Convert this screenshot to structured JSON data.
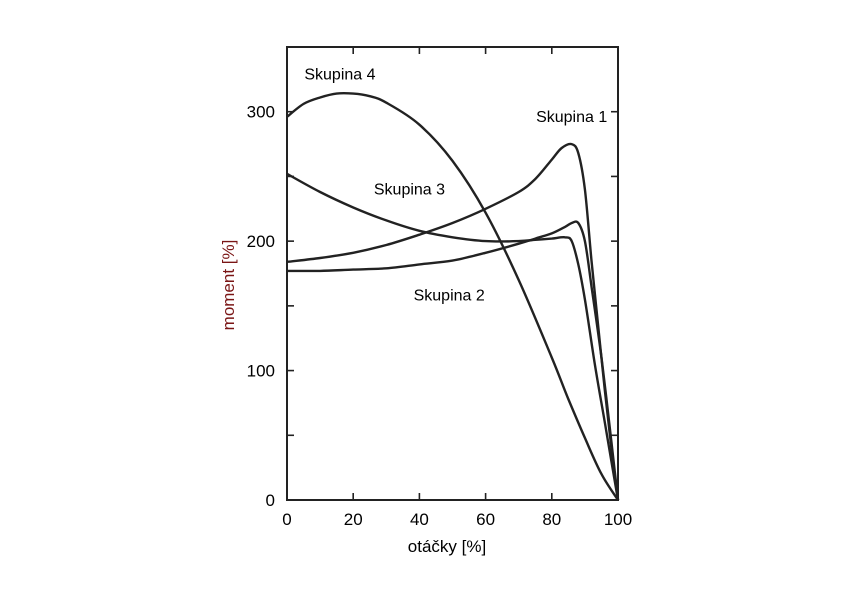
{
  "chart_data": {
    "type": "line",
    "xlabel": "otáčky  [%]",
    "ylabel": "moment [%]",
    "xlim": [
      0,
      100
    ],
    "ylim": [
      0,
      350
    ],
    "xticks": [
      0,
      20,
      40,
      60,
      80,
      100
    ],
    "yticks": [
      0,
      100,
      200,
      300
    ],
    "colors": {
      "text": "#000000",
      "ylabel": "#7a1515",
      "lines": "#222222"
    },
    "series": [
      {
        "name": "Skupina 1",
        "x": [
          0,
          10,
          20,
          30,
          40,
          50,
          60,
          70,
          75,
          80,
          83,
          86,
          88,
          90,
          92,
          94,
          96,
          98,
          100
        ],
        "y": [
          184,
          187,
          191,
          197,
          205,
          214,
          225,
          238,
          248,
          263,
          272,
          275,
          268,
          240,
          185,
          135,
          85,
          40,
          0
        ]
      },
      {
        "name": "Skupina 2",
        "x": [
          0,
          10,
          20,
          30,
          40,
          50,
          60,
          70,
          75,
          80,
          84,
          86,
          88,
          90,
          92,
          95,
          98,
          100
        ],
        "y": [
          177,
          177,
          178,
          179,
          182,
          185,
          191,
          198,
          202,
          206,
          211,
          214,
          214,
          200,
          165,
          110,
          45,
          0
        ]
      },
      {
        "name": "Skupina 3",
        "x": [
          0,
          10,
          20,
          30,
          40,
          50,
          60,
          70,
          75,
          80,
          84,
          86,
          88,
          90,
          93,
          96,
          100
        ],
        "y": [
          252,
          238,
          226,
          216,
          208,
          203,
          200,
          200,
          201,
          202,
          203,
          200,
          182,
          155,
          105,
          60,
          0
        ]
      },
      {
        "name": "Skupina 4",
        "x": [
          0,
          5,
          10,
          15,
          20,
          25,
          30,
          40,
          50,
          60,
          70,
          80,
          85,
          90,
          95,
          100
        ],
        "y": [
          296,
          306,
          311,
          314,
          314,
          312,
          307,
          290,
          262,
          222,
          170,
          110,
          78,
          48,
          20,
          0
        ]
      }
    ]
  }
}
